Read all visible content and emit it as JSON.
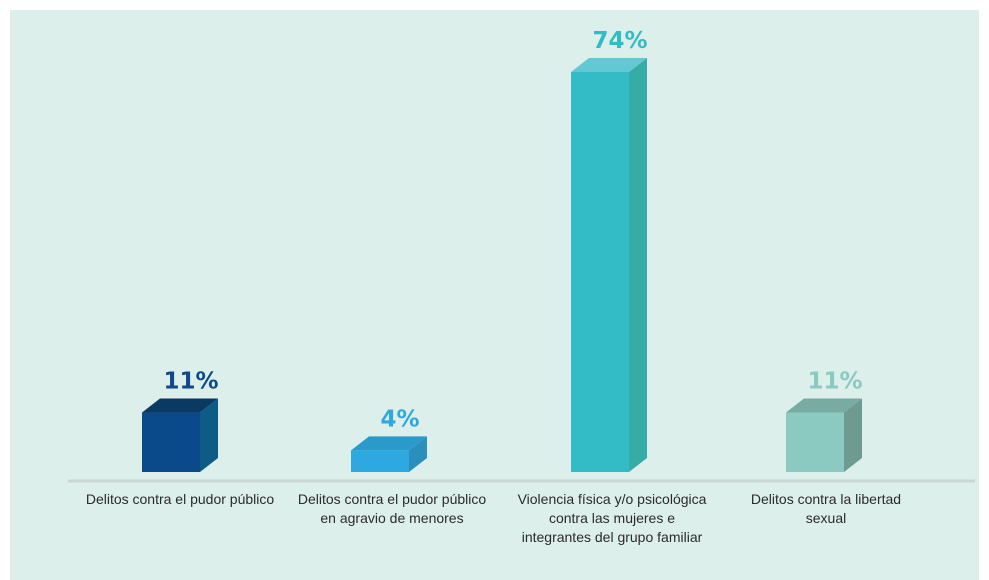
{
  "chart_data": {
    "type": "bar",
    "categories": [
      "Delitos contra el pudor público",
      "Delitos contra el pudor público en agravio de menores",
      "Violencia física y/o psicológica contra las mujeres e integrantes del grupo familiar",
      "Delitos contra la libertad sexual"
    ],
    "values": [
      11,
      4,
      74,
      11
    ],
    "value_labels": [
      "11%",
      "4%",
      "74%",
      "11%"
    ],
    "colors": {
      "front": [
        "#0a4a8b",
        "#2ea8e0",
        "#33bbc6",
        "#8acac0"
      ],
      "side": [
        "#0d5c87",
        "#2a8fba",
        "#35aca8",
        "#6d9b8f"
      ],
      "top": [
        "#0a3a62",
        "#2a9acb",
        "#62c8d3",
        "#78aba2"
      ],
      "value_label": [
        "#0d4a8a",
        "#2ea8e0",
        "#33bbc6",
        "#8acac0"
      ]
    },
    "unit": "%",
    "grid": false,
    "legend": "none"
  }
}
